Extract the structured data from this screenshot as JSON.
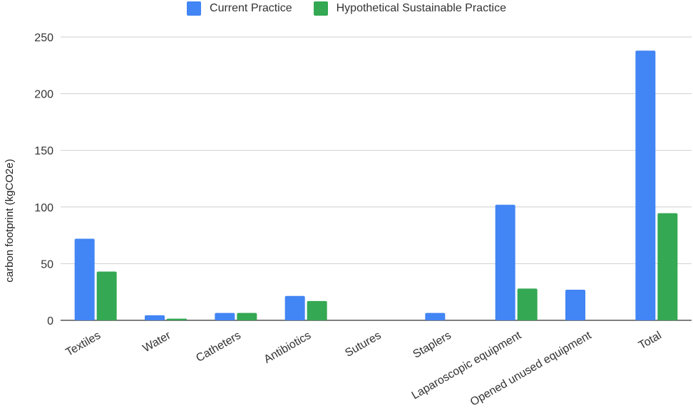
{
  "chart_data": {
    "type": "bar",
    "title": "",
    "xlabel": "",
    "ylabel": "carbon footprint (kgCO2e)",
    "ylim": [
      0,
      250
    ],
    "yticks": [
      0,
      50,
      100,
      150,
      200,
      250
    ],
    "grid": true,
    "legend_position": "top",
    "categories": [
      "Textiles",
      "Water",
      "Catheters",
      "Antibiotics",
      "Sutures",
      "Staplers",
      "Laparoscopic equipment",
      "Opened unused equipment",
      "Total"
    ],
    "series": [
      {
        "name": "Current Practice",
        "color": "#4285f4",
        "values": [
          72,
          4.5,
          6.5,
          21.5,
          0,
          6.5,
          102,
          27,
          238
        ]
      },
      {
        "name": "Hypothetical Sustainable Practice",
        "color": "#34a853",
        "values": [
          43,
          1.5,
          6.5,
          17,
          0,
          0,
          28,
          0,
          94.5
        ]
      }
    ]
  }
}
